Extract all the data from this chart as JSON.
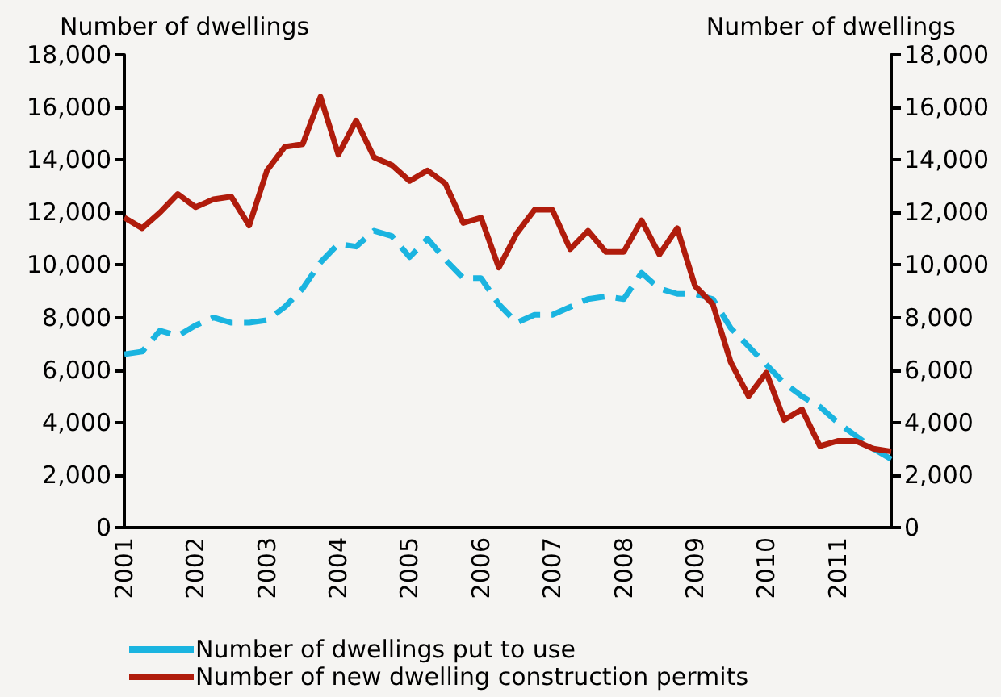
{
  "chart_data": {
    "type": "line",
    "ylabel": "Number of dwellings",
    "y2label": "Number of dwellings",
    "categories": [
      "2001",
      null,
      null,
      null,
      "2002",
      null,
      null,
      null,
      "2003",
      null,
      null,
      null,
      "2004",
      null,
      null,
      null,
      "2005",
      null,
      null,
      null,
      "2006",
      null,
      null,
      null,
      "2007",
      null,
      null,
      null,
      "2008",
      null,
      null,
      null,
      "2009",
      null,
      null,
      null,
      "2010",
      null,
      null,
      null,
      "2011",
      null,
      null,
      null
    ],
    "series": [
      {
        "name": "Number of dwellings put to use",
        "color": "#1ab4e0",
        "line_style": "dashed",
        "values": [
          6600,
          6700,
          7500,
          7300,
          7700,
          8000,
          7800,
          7800,
          7900,
          8400,
          9100,
          10100,
          10800,
          10700,
          11300,
          11100,
          10300,
          11000,
          10200,
          9500,
          9500,
          8500,
          7800,
          8100,
          8100,
          8400,
          8700,
          8800,
          8700,
          9700,
          9100,
          8900,
          8900,
          8700,
          7600,
          6900,
          6200,
          5500,
          5000,
          4600,
          4000,
          3500,
          3000,
          2600
        ]
      },
      {
        "name": "Number of new dwelling construction permits",
        "color": "#b01c0c",
        "line_style": "solid",
        "values": [
          11800,
          11400,
          12000,
          12700,
          12200,
          12500,
          12600,
          11500,
          13600,
          14500,
          14600,
          16400,
          14200,
          15500,
          14100,
          13800,
          13200,
          13600,
          13100,
          11600,
          11800,
          9900,
          11200,
          12100,
          12100,
          10600,
          11300,
          10500,
          10500,
          11700,
          10400,
          11400,
          9200,
          8500,
          6300,
          5000,
          5900,
          4100,
          4500,
          3100,
          3300,
          3300,
          3000,
          2900
        ]
      }
    ],
    "ylim": [
      0,
      18000
    ],
    "yticks": [
      0,
      {
        "value": 2000,
        "label": "2,000"
      },
      {
        "value": 4000,
        "label": "4,000"
      },
      {
        "value": 6000,
        "label": "6,000"
      },
      {
        "value": 8000,
        "label": "8,000"
      },
      {
        "value": 10000,
        "label": "10,000"
      },
      {
        "value": 12000,
        "label": "12,000"
      },
      {
        "value": 14000,
        "label": "14,000"
      },
      {
        "value": 16000,
        "label": "16,000"
      },
      {
        "value": 18000,
        "label": "18,000"
      }
    ],
    "y2lim": [
      0,
      18000
    ],
    "y2ticks": [
      0,
      {
        "value": 2000,
        "label": "2,000"
      },
      {
        "value": 4000,
        "label": "4,000"
      },
      {
        "value": 6000,
        "label": "6,000"
      },
      {
        "value": 8000,
        "label": "8,000"
      },
      {
        "value": 10000,
        "label": "10,000"
      },
      {
        "value": 12000,
        "label": "12,000"
      },
      {
        "value": 14000,
        "label": "14,000"
      },
      {
        "value": 16000,
        "label": "16,000"
      },
      {
        "value": 18000,
        "label": "18,000"
      }
    ],
    "grid": false,
    "legend": "bottom left",
    "marker": "none"
  }
}
